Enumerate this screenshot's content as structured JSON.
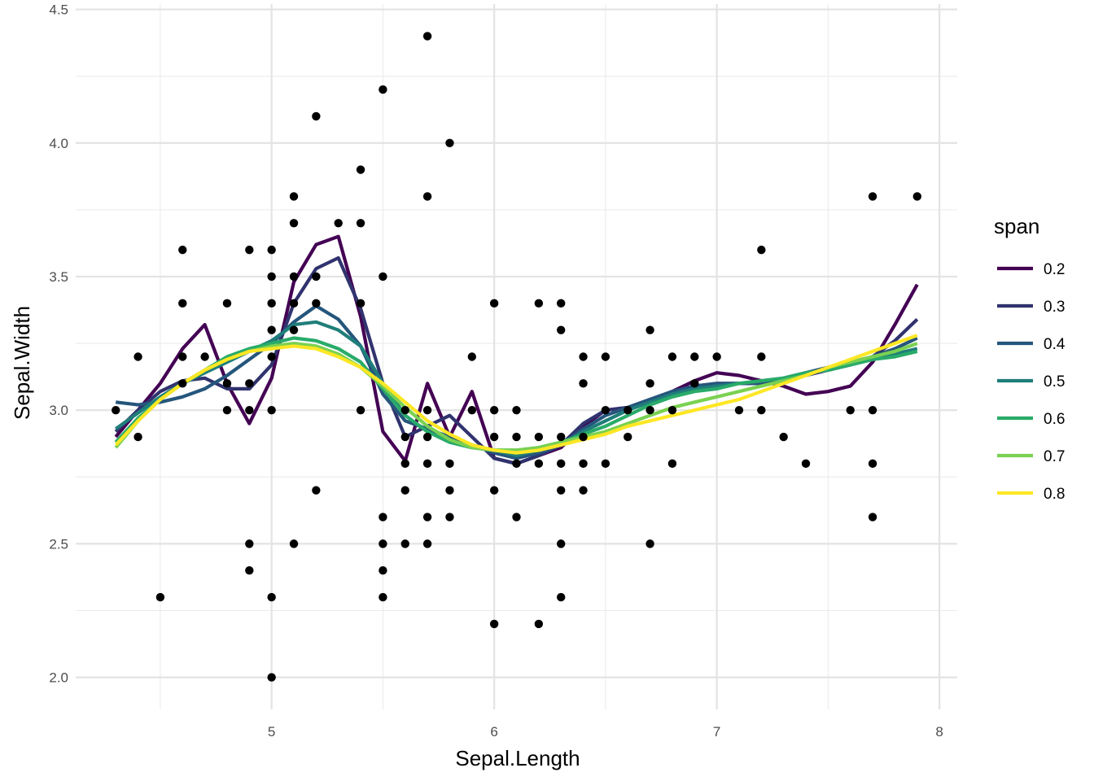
{
  "chart_data": {
    "type": "scatter",
    "xlabel": "Sepal.Length",
    "ylabel": "Sepal.Width",
    "xlim": [
      4.12,
      8.08
    ],
    "ylim": [
      1.88,
      4.52
    ],
    "x_ticks": [
      5,
      6,
      7,
      8
    ],
    "x_tick_labels": [
      "5",
      "6",
      "7",
      "8"
    ],
    "x_minor_ticks": [
      4.5,
      5.5,
      6.5,
      7.5
    ],
    "y_ticks": [
      2.0,
      2.5,
      3.0,
      3.5,
      4.0,
      4.5
    ],
    "y_tick_labels": [
      "2.0",
      "2.5",
      "3.0",
      "3.5",
      "4.0",
      "4.5"
    ],
    "y_minor_ticks": [
      2.25,
      2.75,
      3.25,
      3.75,
      4.25
    ],
    "grid": true,
    "legend_position": "right",
    "legend_title": "span",
    "point_color": "#000000",
    "points": [
      [
        4.3,
        3.0
      ],
      [
        4.4,
        2.9
      ],
      [
        4.4,
        3.2
      ],
      [
        4.5,
        2.3
      ],
      [
        4.6,
        3.1
      ],
      [
        4.6,
        3.2
      ],
      [
        4.6,
        3.4
      ],
      [
        4.6,
        3.6
      ],
      [
        4.7,
        3.2
      ],
      [
        4.8,
        3.0
      ],
      [
        4.8,
        3.1
      ],
      [
        4.8,
        3.4
      ],
      [
        4.9,
        2.4
      ],
      [
        4.9,
        2.5
      ],
      [
        4.9,
        3.0
      ],
      [
        4.9,
        3.1
      ],
      [
        4.9,
        3.6
      ],
      [
        5.0,
        2.0
      ],
      [
        5.0,
        2.3
      ],
      [
        5.0,
        3.0
      ],
      [
        5.0,
        3.2
      ],
      [
        5.0,
        3.3
      ],
      [
        5.0,
        3.4
      ],
      [
        5.0,
        3.5
      ],
      [
        5.0,
        3.6
      ],
      [
        5.1,
        2.5
      ],
      [
        5.1,
        3.3
      ],
      [
        5.1,
        3.4
      ],
      [
        5.1,
        3.5
      ],
      [
        5.1,
        3.7
      ],
      [
        5.1,
        3.8
      ],
      [
        5.2,
        2.7
      ],
      [
        5.2,
        3.4
      ],
      [
        5.2,
        3.5
      ],
      [
        5.2,
        4.1
      ],
      [
        5.3,
        3.7
      ],
      [
        5.4,
        3.0
      ],
      [
        5.4,
        3.4
      ],
      [
        5.4,
        3.7
      ],
      [
        5.4,
        3.9
      ],
      [
        5.5,
        2.3
      ],
      [
        5.5,
        2.4
      ],
      [
        5.5,
        2.5
      ],
      [
        5.5,
        2.6
      ],
      [
        5.5,
        3.5
      ],
      [
        5.5,
        4.2
      ],
      [
        5.6,
        2.5
      ],
      [
        5.6,
        2.7
      ],
      [
        5.6,
        2.8
      ],
      [
        5.6,
        2.9
      ],
      [
        5.6,
        3.0
      ],
      [
        5.7,
        2.5
      ],
      [
        5.7,
        2.6
      ],
      [
        5.7,
        2.8
      ],
      [
        5.7,
        2.9
      ],
      [
        5.7,
        3.0
      ],
      [
        5.7,
        3.8
      ],
      [
        5.7,
        4.4
      ],
      [
        5.8,
        2.6
      ],
      [
        5.8,
        2.7
      ],
      [
        5.8,
        2.8
      ],
      [
        5.8,
        4.0
      ],
      [
        5.9,
        3.0
      ],
      [
        5.9,
        3.2
      ],
      [
        6.0,
        2.2
      ],
      [
        6.0,
        2.7
      ],
      [
        6.0,
        2.9
      ],
      [
        6.0,
        3.0
      ],
      [
        6.0,
        3.4
      ],
      [
        6.1,
        2.6
      ],
      [
        6.1,
        2.8
      ],
      [
        6.1,
        2.9
      ],
      [
        6.1,
        3.0
      ],
      [
        6.2,
        2.2
      ],
      [
        6.2,
        2.8
      ],
      [
        6.2,
        2.9
      ],
      [
        6.2,
        3.4
      ],
      [
        6.3,
        2.3
      ],
      [
        6.3,
        2.5
      ],
      [
        6.3,
        2.7
      ],
      [
        6.3,
        2.8
      ],
      [
        6.3,
        2.9
      ],
      [
        6.3,
        3.3
      ],
      [
        6.3,
        3.4
      ],
      [
        6.4,
        2.7
      ],
      [
        6.4,
        2.8
      ],
      [
        6.4,
        2.9
      ],
      [
        6.4,
        3.1
      ],
      [
        6.4,
        3.2
      ],
      [
        6.5,
        2.8
      ],
      [
        6.5,
        3.0
      ],
      [
        6.5,
        3.2
      ],
      [
        6.6,
        2.9
      ],
      [
        6.6,
        3.0
      ],
      [
        6.7,
        2.5
      ],
      [
        6.7,
        3.0
      ],
      [
        6.7,
        3.1
      ],
      [
        6.7,
        3.3
      ],
      [
        6.8,
        2.8
      ],
      [
        6.8,
        3.0
      ],
      [
        6.8,
        3.2
      ],
      [
        6.9,
        3.1
      ],
      [
        6.9,
        3.2
      ],
      [
        7.0,
        3.2
      ],
      [
        7.1,
        3.0
      ],
      [
        7.2,
        3.0
      ],
      [
        7.2,
        3.2
      ],
      [
        7.2,
        3.6
      ],
      [
        7.3,
        2.9
      ],
      [
        7.4,
        2.8
      ],
      [
        7.6,
        3.0
      ],
      [
        7.7,
        2.6
      ],
      [
        7.7,
        2.8
      ],
      [
        7.7,
        3.0
      ],
      [
        7.7,
        3.8
      ],
      [
        7.9,
        3.8
      ]
    ],
    "series": [
      {
        "name": "0.2",
        "color": "#440154",
        "x": [
          4.3,
          4.4,
          4.5,
          4.6,
          4.7,
          4.8,
          4.9,
          5.0,
          5.1,
          5.2,
          5.3,
          5.4,
          5.5,
          5.6,
          5.7,
          5.8,
          5.9,
          6.0,
          6.1,
          6.2,
          6.3,
          6.4,
          6.5,
          6.6,
          6.7,
          6.8,
          6.9,
          7.0,
          7.1,
          7.2,
          7.3,
          7.4,
          7.5,
          7.6,
          7.7,
          7.8,
          7.9
        ],
        "y": [
          2.9,
          3.0,
          3.1,
          3.23,
          3.32,
          3.1,
          2.95,
          3.12,
          3.48,
          3.62,
          3.65,
          3.35,
          2.92,
          2.81,
          3.1,
          2.9,
          3.07,
          2.82,
          2.8,
          2.83,
          2.86,
          2.94,
          3.0,
          3.01,
          3.03,
          3.07,
          3.11,
          3.14,
          3.13,
          3.11,
          3.09,
          3.06,
          3.07,
          3.09,
          3.18,
          3.32,
          3.47
        ]
      },
      {
        "name": "0.3",
        "color": "#30336e",
        "x": [
          4.3,
          4.4,
          4.5,
          4.6,
          4.7,
          4.8,
          4.9,
          5.0,
          5.1,
          5.2,
          5.3,
          5.4,
          5.5,
          5.6,
          5.7,
          5.8,
          5.9,
          6.0,
          6.1,
          6.2,
          6.3,
          6.4,
          6.5,
          6.6,
          6.7,
          6.8,
          6.9,
          7.0,
          7.1,
          7.2,
          7.3,
          7.4,
          7.5,
          7.6,
          7.7,
          7.8,
          7.9
        ],
        "y": [
          2.92,
          3.0,
          3.07,
          3.11,
          3.12,
          3.08,
          3.08,
          3.17,
          3.4,
          3.53,
          3.57,
          3.38,
          3.1,
          2.9,
          2.94,
          2.98,
          2.9,
          2.82,
          2.8,
          2.83,
          2.87,
          2.95,
          3.0,
          3.01,
          3.04,
          3.07,
          3.09,
          3.1,
          3.1,
          3.1,
          3.11,
          3.13,
          3.15,
          3.17,
          3.2,
          3.26,
          3.34
        ]
      },
      {
        "name": "0.4",
        "color": "#25567c",
        "x": [
          4.3,
          4.4,
          4.5,
          4.6,
          4.7,
          4.8,
          4.9,
          5.0,
          5.1,
          5.2,
          5.3,
          5.4,
          5.5,
          5.6,
          5.7,
          5.8,
          5.9,
          6.0,
          6.1,
          6.2,
          6.3,
          6.4,
          6.5,
          6.6,
          6.7,
          6.8,
          6.9,
          7.0,
          7.1,
          7.2,
          7.3,
          7.4,
          7.5,
          7.6,
          7.7,
          7.8,
          7.9
        ],
        "y": [
          3.03,
          3.02,
          3.03,
          3.05,
          3.08,
          3.13,
          3.19,
          3.25,
          3.33,
          3.39,
          3.34,
          3.24,
          3.06,
          2.96,
          2.93,
          2.9,
          2.87,
          2.84,
          2.82,
          2.84,
          2.87,
          2.93,
          2.98,
          3.01,
          3.04,
          3.07,
          3.09,
          3.1,
          3.1,
          3.1,
          3.12,
          3.14,
          3.16,
          3.18,
          3.2,
          3.23,
          3.27
        ]
      },
      {
        "name": "0.5",
        "color": "#1f7e7a",
        "x": [
          4.3,
          4.4,
          4.5,
          4.6,
          4.7,
          4.8,
          4.9,
          5.0,
          5.1,
          5.2,
          5.3,
          5.4,
          5.5,
          5.6,
          5.7,
          5.8,
          5.9,
          6.0,
          6.1,
          6.2,
          6.3,
          6.4,
          6.5,
          6.6,
          6.7,
          6.8,
          6.9,
          7.0,
          7.1,
          7.2,
          7.3,
          7.4,
          7.5,
          7.6,
          7.7,
          7.8,
          7.9
        ],
        "y": [
          2.93,
          2.99,
          3.05,
          3.1,
          3.14,
          3.18,
          3.22,
          3.26,
          3.32,
          3.33,
          3.3,
          3.24,
          3.1,
          2.98,
          2.92,
          2.88,
          2.86,
          2.85,
          2.83,
          2.85,
          2.87,
          2.92,
          2.96,
          3.0,
          3.03,
          3.06,
          3.08,
          3.09,
          3.1,
          3.11,
          3.12,
          3.14,
          3.15,
          3.17,
          3.19,
          3.21,
          3.23
        ]
      },
      {
        "name": "0.6",
        "color": "#29ab69",
        "x": [
          4.3,
          4.4,
          4.5,
          4.6,
          4.7,
          4.8,
          4.9,
          5.0,
          5.1,
          5.2,
          5.3,
          5.4,
          5.5,
          5.6,
          5.7,
          5.8,
          5.9,
          6.0,
          6.1,
          6.2,
          6.3,
          6.4,
          6.5,
          6.6,
          6.7,
          6.8,
          6.9,
          7.0,
          7.1,
          7.2,
          7.3,
          7.4,
          7.5,
          7.6,
          7.7,
          7.8,
          7.9
        ],
        "y": [
          2.88,
          2.97,
          3.04,
          3.1,
          3.15,
          3.2,
          3.23,
          3.25,
          3.27,
          3.26,
          3.23,
          3.18,
          3.08,
          2.98,
          2.92,
          2.88,
          2.86,
          2.85,
          2.85,
          2.86,
          2.88,
          2.91,
          2.94,
          2.98,
          3.02,
          3.05,
          3.07,
          3.08,
          3.1,
          3.11,
          3.12,
          3.14,
          3.15,
          3.17,
          3.19,
          3.2,
          3.22
        ]
      },
      {
        "name": "0.7",
        "color": "#7ad151",
        "x": [
          4.3,
          4.4,
          4.5,
          4.6,
          4.7,
          4.8,
          4.9,
          5.0,
          5.1,
          5.2,
          5.3,
          5.4,
          5.5,
          5.6,
          5.7,
          5.8,
          5.9,
          6.0,
          6.1,
          6.2,
          6.3,
          6.4,
          6.5,
          6.6,
          6.7,
          6.8,
          6.9,
          7.0,
          7.1,
          7.2,
          7.3,
          7.4,
          7.5,
          7.6,
          7.7,
          7.8,
          7.9
        ],
        "y": [
          2.86,
          2.96,
          3.04,
          3.1,
          3.15,
          3.19,
          3.22,
          3.24,
          3.25,
          3.24,
          3.21,
          3.16,
          3.09,
          3.01,
          2.94,
          2.89,
          2.86,
          2.85,
          2.85,
          2.86,
          2.88,
          2.9,
          2.92,
          2.95,
          2.98,
          3.01,
          3.03,
          3.05,
          3.07,
          3.09,
          3.11,
          3.13,
          3.16,
          3.18,
          3.2,
          3.22,
          3.25
        ]
      },
      {
        "name": "0.8",
        "color": "#fde725",
        "x": [
          4.3,
          4.4,
          4.5,
          4.6,
          4.7,
          4.8,
          4.9,
          5.0,
          5.1,
          5.2,
          5.3,
          5.4,
          5.5,
          5.6,
          5.7,
          5.8,
          5.9,
          6.0,
          6.1,
          6.2,
          6.3,
          6.4,
          6.5,
          6.6,
          6.7,
          6.8,
          6.9,
          7.0,
          7.1,
          7.2,
          7.3,
          7.4,
          7.5,
          7.6,
          7.7,
          7.8,
          7.9
        ],
        "y": [
          2.87,
          2.96,
          3.04,
          3.1,
          3.15,
          3.19,
          3.22,
          3.23,
          3.24,
          3.23,
          3.2,
          3.16,
          3.1,
          3.03,
          2.96,
          2.91,
          2.87,
          2.85,
          2.84,
          2.85,
          2.87,
          2.89,
          2.91,
          2.94,
          2.96,
          2.98,
          3.0,
          3.02,
          3.04,
          3.07,
          3.1,
          3.13,
          3.16,
          3.19,
          3.22,
          3.25,
          3.28
        ]
      }
    ]
  }
}
